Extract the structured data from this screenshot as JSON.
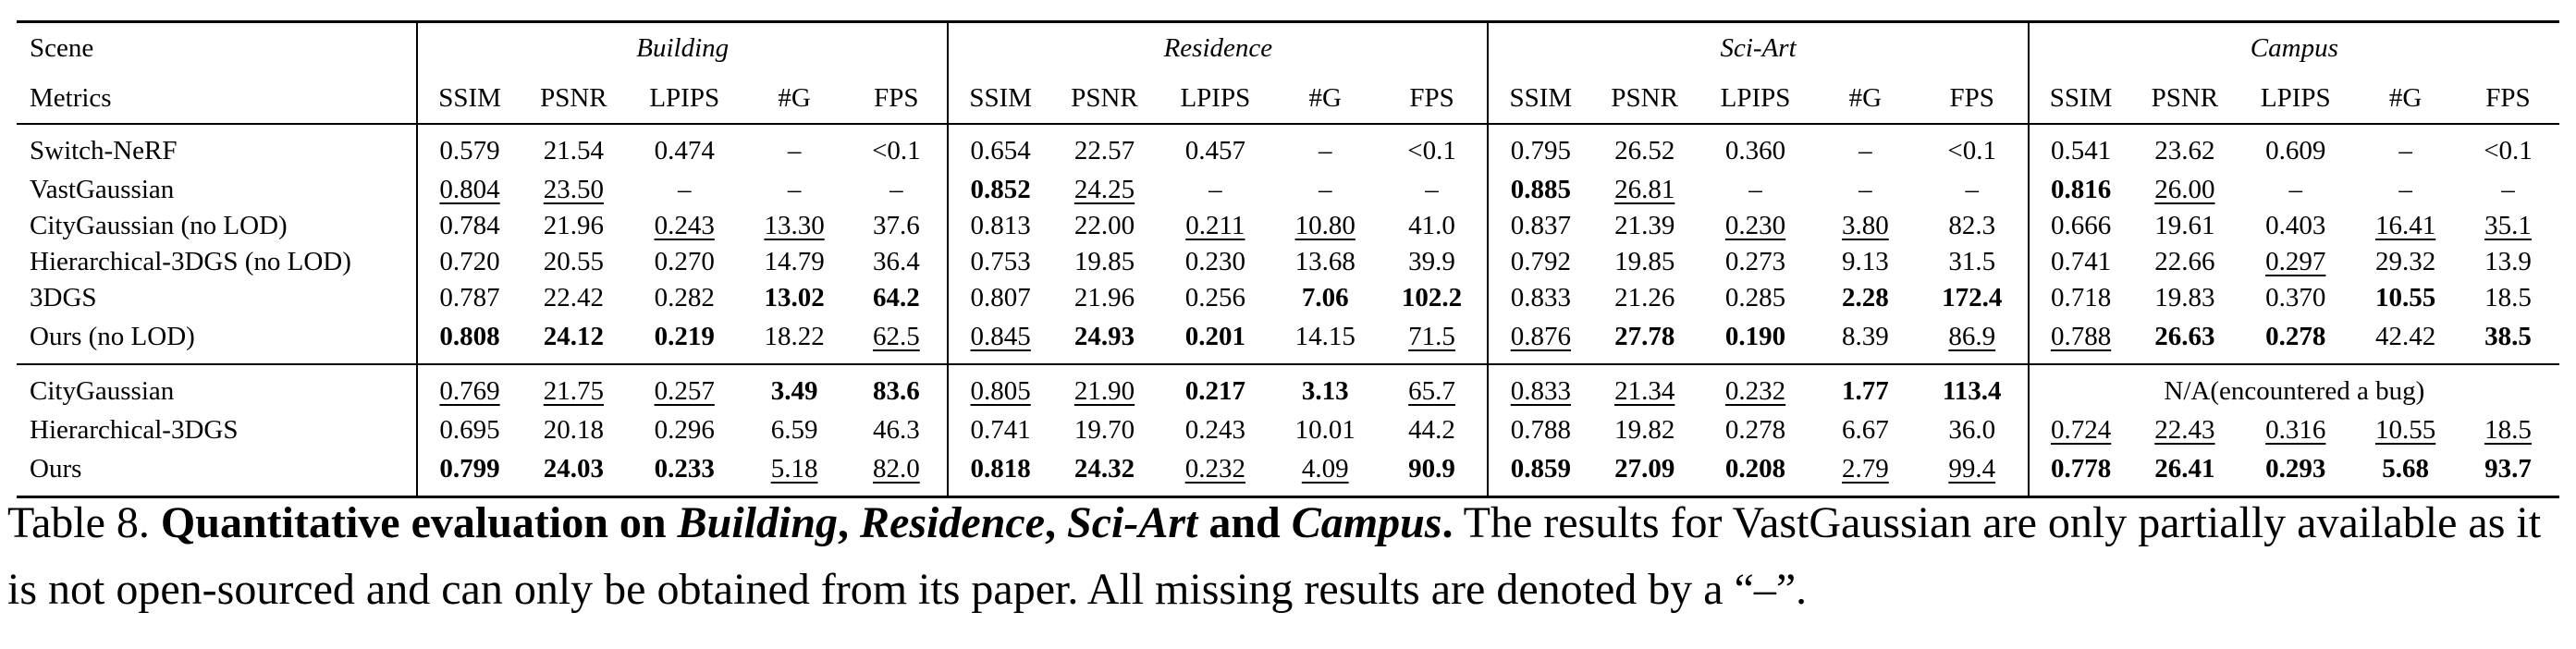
{
  "table": {
    "scene_label": "Scene",
    "metrics_label": "Metrics",
    "scenes": [
      "Building",
      "Residence",
      "Sci-Art",
      "Campus"
    ],
    "metrics": [
      "SSIM",
      "PSNR",
      "LPIPS",
      "#G",
      "FPS"
    ],
    "blocks": [
      {
        "rows": [
          {
            "method": "Switch-NeRF",
            "cells": [
              {
                "v": "0.579"
              },
              {
                "v": "21.54"
              },
              {
                "v": "0.474"
              },
              {
                "v": "–"
              },
              {
                "v": "<0.1"
              },
              {
                "v": "0.654"
              },
              {
                "v": "22.57"
              },
              {
                "v": "0.457"
              },
              {
                "v": "–"
              },
              {
                "v": "<0.1"
              },
              {
                "v": "0.795"
              },
              {
                "v": "26.52"
              },
              {
                "v": "0.360"
              },
              {
                "v": "–"
              },
              {
                "v": "<0.1"
              },
              {
                "v": "0.541"
              },
              {
                "v": "23.62"
              },
              {
                "v": "0.609"
              },
              {
                "v": "–"
              },
              {
                "v": "<0.1"
              }
            ]
          },
          {
            "method": "VastGaussian",
            "cells": [
              {
                "v": "0.804",
                "u": true
              },
              {
                "v": "23.50",
                "u": true
              },
              {
                "v": "–"
              },
              {
                "v": "–"
              },
              {
                "v": "–"
              },
              {
                "v": "0.852",
                "b": true
              },
              {
                "v": "24.25",
                "u": true
              },
              {
                "v": "–"
              },
              {
                "v": "–"
              },
              {
                "v": "–"
              },
              {
                "v": "0.885",
                "b": true
              },
              {
                "v": "26.81",
                "u": true
              },
              {
                "v": "–"
              },
              {
                "v": "–"
              },
              {
                "v": "–"
              },
              {
                "v": "0.816",
                "b": true
              },
              {
                "v": "26.00",
                "u": true
              },
              {
                "v": "–"
              },
              {
                "v": "–"
              },
              {
                "v": "–"
              }
            ]
          },
          {
            "method": "CityGaussian (no LOD)",
            "cells": [
              {
                "v": "0.784"
              },
              {
                "v": "21.96"
              },
              {
                "v": "0.243",
                "u": true
              },
              {
                "v": "13.30",
                "u": true
              },
              {
                "v": "37.6"
              },
              {
                "v": "0.813"
              },
              {
                "v": "22.00"
              },
              {
                "v": "0.211",
                "u": true
              },
              {
                "v": "10.80",
                "u": true
              },
              {
                "v": "41.0"
              },
              {
                "v": "0.837"
              },
              {
                "v": "21.39"
              },
              {
                "v": "0.230",
                "u": true
              },
              {
                "v": "3.80",
                "u": true
              },
              {
                "v": "82.3"
              },
              {
                "v": "0.666"
              },
              {
                "v": "19.61"
              },
              {
                "v": "0.403"
              },
              {
                "v": "16.41",
                "u": true
              },
              {
                "v": "35.1",
                "u": true
              }
            ]
          },
          {
            "method": "Hierarchical-3DGS (no LOD)",
            "cells": [
              {
                "v": "0.720"
              },
              {
                "v": "20.55"
              },
              {
                "v": "0.270"
              },
              {
                "v": "14.79"
              },
              {
                "v": "36.4"
              },
              {
                "v": "0.753"
              },
              {
                "v": "19.85"
              },
              {
                "v": "0.230"
              },
              {
                "v": "13.68"
              },
              {
                "v": "39.9"
              },
              {
                "v": "0.792"
              },
              {
                "v": "19.85"
              },
              {
                "v": "0.273"
              },
              {
                "v": "9.13"
              },
              {
                "v": "31.5"
              },
              {
                "v": "0.741"
              },
              {
                "v": "22.66"
              },
              {
                "v": "0.297",
                "u": true
              },
              {
                "v": "29.32"
              },
              {
                "v": "13.9"
              }
            ]
          },
          {
            "method": "3DGS",
            "cells": [
              {
                "v": "0.787"
              },
              {
                "v": "22.42"
              },
              {
                "v": "0.282"
              },
              {
                "v": "13.02",
                "b": true
              },
              {
                "v": "64.2",
                "b": true
              },
              {
                "v": "0.807"
              },
              {
                "v": "21.96"
              },
              {
                "v": "0.256"
              },
              {
                "v": "7.06",
                "b": true
              },
              {
                "v": "102.2",
                "b": true
              },
              {
                "v": "0.833"
              },
              {
                "v": "21.26"
              },
              {
                "v": "0.285"
              },
              {
                "v": "2.28",
                "b": true
              },
              {
                "v": "172.4",
                "b": true
              },
              {
                "v": "0.718"
              },
              {
                "v": "19.83"
              },
              {
                "v": "0.370"
              },
              {
                "v": "10.55",
                "b": true
              },
              {
                "v": "18.5"
              }
            ]
          },
          {
            "method": "Ours (no LOD)",
            "cells": [
              {
                "v": "0.808",
                "b": true
              },
              {
                "v": "24.12",
                "b": true
              },
              {
                "v": "0.219",
                "b": true
              },
              {
                "v": "18.22"
              },
              {
                "v": "62.5",
                "u": true
              },
              {
                "v": "0.845",
                "u": true
              },
              {
                "v": "24.93",
                "b": true
              },
              {
                "v": "0.201",
                "b": true
              },
              {
                "v": "14.15"
              },
              {
                "v": "71.5",
                "u": true
              },
              {
                "v": "0.876",
                "u": true
              },
              {
                "v": "27.78",
                "b": true
              },
              {
                "v": "0.190",
                "b": true
              },
              {
                "v": "8.39"
              },
              {
                "v": "86.9",
                "u": true
              },
              {
                "v": "0.788",
                "u": true
              },
              {
                "v": "26.63",
                "b": true
              },
              {
                "v": "0.278",
                "b": true
              },
              {
                "v": "42.42"
              },
              {
                "v": "38.5",
                "b": true
              }
            ]
          }
        ]
      },
      {
        "rows": [
          {
            "method": "CityGaussian",
            "cells": [
              {
                "v": "0.769",
                "u": true
              },
              {
                "v": "21.75",
                "u": true
              },
              {
                "v": "0.257",
                "u": true
              },
              {
                "v": "3.49",
                "b": true
              },
              {
                "v": "83.6",
                "b": true
              },
              {
                "v": "0.805",
                "u": true
              },
              {
                "v": "21.90",
                "u": true
              },
              {
                "v": "0.217",
                "b": true
              },
              {
                "v": "3.13",
                "b": true
              },
              {
                "v": "65.7",
                "u": true
              },
              {
                "v": "0.833",
                "u": true
              },
              {
                "v": "21.34",
                "u": true
              },
              {
                "v": "0.232",
                "u": true
              },
              {
                "v": "1.77",
                "b": true
              },
              {
                "v": "113.4",
                "b": true
              },
              {
                "v": "N/A(encountered a bug)",
                "span": 5
              }
            ]
          },
          {
            "method": "Hierarchical-3DGS",
            "cells": [
              {
                "v": "0.695"
              },
              {
                "v": "20.18"
              },
              {
                "v": "0.296"
              },
              {
                "v": "6.59"
              },
              {
                "v": "46.3"
              },
              {
                "v": "0.741"
              },
              {
                "v": "19.70"
              },
              {
                "v": "0.243"
              },
              {
                "v": "10.01"
              },
              {
                "v": "44.2"
              },
              {
                "v": "0.788"
              },
              {
                "v": "19.82"
              },
              {
                "v": "0.278"
              },
              {
                "v": "6.67"
              },
              {
                "v": "36.0"
              },
              {
                "v": "0.724",
                "u": true
              },
              {
                "v": "22.43",
                "u": true
              },
              {
                "v": "0.316",
                "u": true
              },
              {
                "v": "10.55",
                "u": true
              },
              {
                "v": "18.5",
                "u": true
              }
            ]
          },
          {
            "method": "Ours",
            "cells": [
              {
                "v": "0.799",
                "b": true
              },
              {
                "v": "24.03",
                "b": true
              },
              {
                "v": "0.233",
                "b": true
              },
              {
                "v": "5.18",
                "u": true
              },
              {
                "v": "82.0",
                "u": true
              },
              {
                "v": "0.818",
                "b": true
              },
              {
                "v": "24.32",
                "b": true
              },
              {
                "v": "0.232",
                "u": true
              },
              {
                "v": "4.09",
                "u": true
              },
              {
                "v": "90.9",
                "b": true
              },
              {
                "v": "0.859",
                "b": true
              },
              {
                "v": "27.09",
                "b": true
              },
              {
                "v": "0.208",
                "b": true
              },
              {
                "v": "2.79",
                "u": true
              },
              {
                "v": "99.4",
                "u": true
              },
              {
                "v": "0.778",
                "b": true
              },
              {
                "v": "26.41",
                "b": true
              },
              {
                "v": "0.293",
                "b": true
              },
              {
                "v": "5.68",
                "b": true
              },
              {
                "v": "93.7",
                "b": true
              }
            ]
          }
        ]
      }
    ]
  },
  "caption": {
    "label": "Table 8.",
    "title_prefix": "Quantitative evaluation on",
    "scene1": "Building",
    "sep1": ",",
    "scene2": "Residence",
    "sep2": ",",
    "scene3": "Sci-Art",
    "and": "and",
    "scene4": "Campus",
    "period": ".",
    "body": "The results for VastGaussian are only partially available as it is not open-sourced and can only be obtained from its paper. All missing results are denoted by a “–”."
  }
}
